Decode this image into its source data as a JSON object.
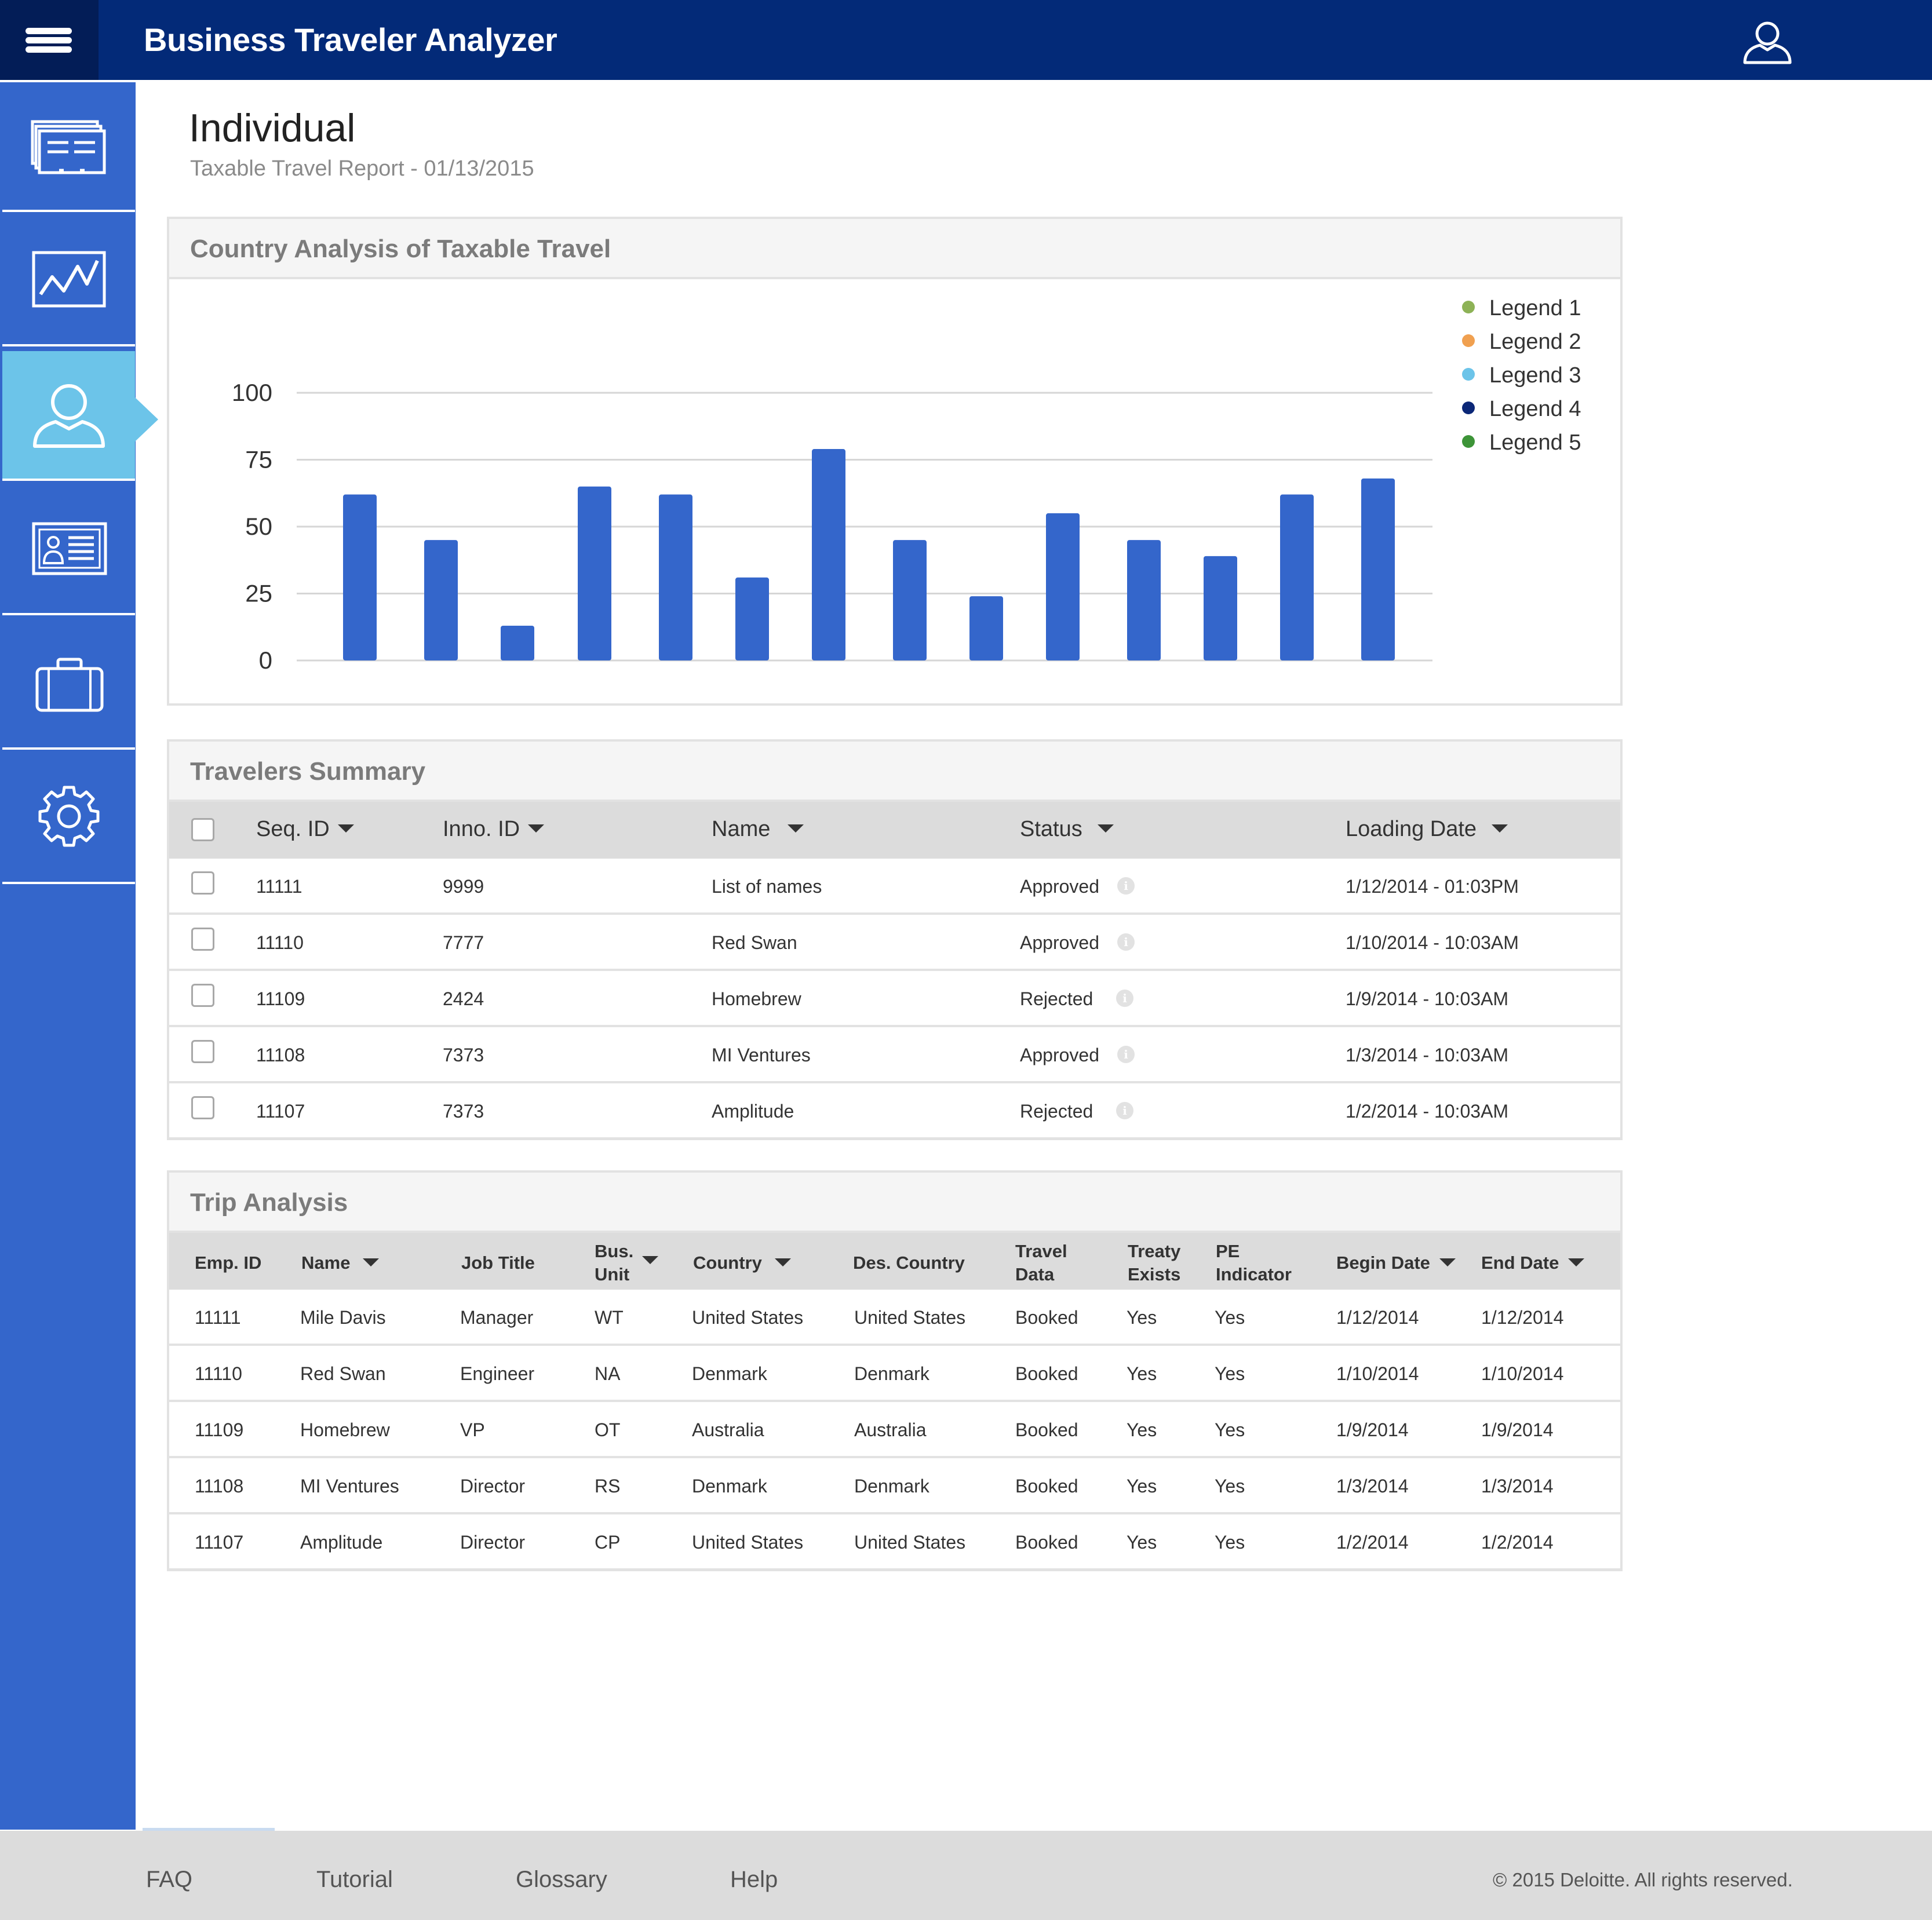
{
  "app": {
    "title": "Business Traveler Analyzer",
    "colors": {
      "topbar": "#032a78",
      "sidebar": "#3466cb",
      "active_nav": "#6cc4e9",
      "bar": "#3466cb"
    }
  },
  "topbar": {
    "menu_icon": "hamburger-menu-icon",
    "user_icon": "user-icon"
  },
  "sidebar": {
    "items": [
      {
        "name": "reports",
        "icon": "reports-stack-icon",
        "active": false
      },
      {
        "name": "analytics",
        "icon": "line-chart-icon",
        "active": false
      },
      {
        "name": "individual",
        "icon": "person-icon",
        "active": true
      },
      {
        "name": "profile",
        "icon": "id-card-icon",
        "active": false
      },
      {
        "name": "trips",
        "icon": "briefcase-icon",
        "active": false
      },
      {
        "name": "settings",
        "icon": "gear-icon",
        "active": false
      }
    ]
  },
  "page": {
    "title": "Individual",
    "subtitle": "Taxable Travel Report - 01/13/2015"
  },
  "chart_panel": {
    "title": "Country Analysis of Taxable Travel"
  },
  "chart_data": {
    "type": "bar",
    "title": "",
    "xlabel": "",
    "ylabel": "",
    "ylim": [
      0,
      100
    ],
    "yticks": [
      0,
      25,
      50,
      75,
      100
    ],
    "grid": true,
    "legend_position": "top-right",
    "legend": [
      {
        "label": "Legend 1",
        "color": "#8db256"
      },
      {
        "label": "Legend 2",
        "color": "#f0a050"
      },
      {
        "label": "Legend 3",
        "color": "#6cc4e9"
      },
      {
        "label": "Legend 4",
        "color": "#0b2777"
      },
      {
        "label": "Legend 5",
        "color": "#3d9438"
      }
    ],
    "values": [
      62,
      45,
      13,
      65,
      62,
      31,
      79,
      45,
      24,
      55,
      45,
      39,
      62,
      68
    ]
  },
  "travelers_summary": {
    "title": "Travelers Summary",
    "columns": [
      "Seq. ID",
      "Inno. ID",
      "Name",
      "Status",
      "Loading Date"
    ],
    "rows": [
      {
        "seq": "11111",
        "inno": "9999",
        "name": "List of names",
        "status": "Approved",
        "date": "1/12/2014  -  01:03PM"
      },
      {
        "seq": "11110",
        "inno": "7777",
        "name": "Red Swan",
        "status": "Approved",
        "date": "1/10/2014  - 10:03AM"
      },
      {
        "seq": "11109",
        "inno": "2424",
        "name": "Homebrew",
        "status": "Rejected",
        "date": "1/9/2014  - 10:03AM"
      },
      {
        "seq": "11108",
        "inno": "7373",
        "name": "MI Ventures",
        "status": "Approved",
        "date": "1/3/2014  - 10:03AM"
      },
      {
        "seq": "11107",
        "inno": "7373",
        "name": "Amplitude",
        "status": "Rejected",
        "date": "1/2/2014  - 10:03AM"
      }
    ]
  },
  "trip_analysis": {
    "title": "Trip Analysis",
    "columns": [
      "Emp. ID",
      "Name",
      "Job Title",
      "Bus. Unit",
      "Country",
      "Des. Country",
      "Travel Data",
      "Treaty Exists",
      "PE Indicator",
      "Begin Date",
      "End Date"
    ],
    "rows": [
      [
        "11111",
        "Mile Davis",
        "Manager",
        "WT",
        "United States",
        "United States",
        "Booked",
        "Yes",
        "Yes",
        "1/12/2014",
        "1/12/2014"
      ],
      [
        "11110",
        "Red Swan",
        "Engineer",
        "NA",
        "Denmark",
        "Denmark",
        "Booked",
        "Yes",
        "Yes",
        "1/10/2014",
        "1/10/2014"
      ],
      [
        "11109",
        "Homebrew",
        "VP",
        "OT",
        "Australia",
        "Australia",
        "Booked",
        "Yes",
        "Yes",
        "1/9/2014",
        "1/9/2014"
      ],
      [
        "11108",
        "MI Ventures",
        "Director",
        "RS",
        "Denmark",
        "Denmark",
        "Booked",
        "Yes",
        "Yes",
        "1/3/2014",
        "1/3/2014"
      ],
      [
        "11107",
        "Amplitude",
        "Director",
        "CP",
        "United States",
        "United States",
        "Booked",
        "Yes",
        "Yes",
        "1/2/2014",
        "1/2/2014"
      ]
    ]
  },
  "footer": {
    "links": [
      "FAQ",
      "Tutorial",
      "Glossary",
      "Help"
    ],
    "copyright": "© 2015 Deloitte. All rights reserved."
  }
}
